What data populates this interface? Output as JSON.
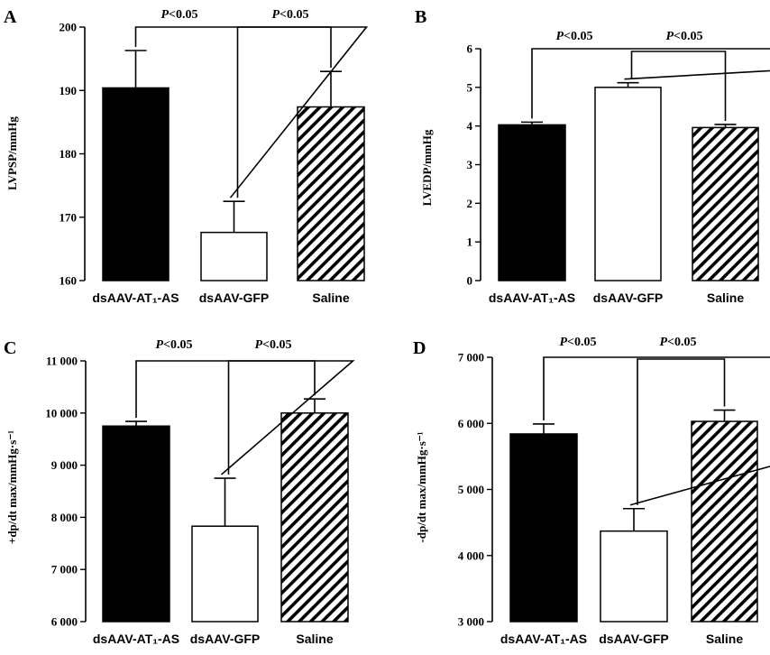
{
  "colors": {
    "ink": "#000000",
    "background": "#ffffff"
  },
  "chart_data": [
    {
      "panel": "A",
      "type": "bar",
      "ylabel": "LVPSP/mmHg",
      "categories": [
        "dsAAV-AT₁-AS",
        "dsAAV-GFP",
        "Saline"
      ],
      "values": [
        190.4,
        167.6,
        187.4
      ],
      "errors": [
        5.9,
        4.9,
        5.6
      ],
      "fills": [
        "solid",
        "empty",
        "hatch"
      ],
      "ylim": [
        160,
        200
      ],
      "yticks": [
        160,
        170,
        180,
        190,
        200
      ],
      "ytick_labels": [
        "160",
        "170",
        "180",
        "190",
        "200"
      ],
      "annotations": [
        "P<0.05",
        "P<0.05"
      ]
    },
    {
      "panel": "B",
      "type": "bar",
      "ylabel": "LVEDP/mmHg",
      "categories": [
        "dsAAV-AT₁-AS",
        "dsAAV-GFP",
        "Saline"
      ],
      "values": [
        4.03,
        5.0,
        3.96
      ],
      "errors": [
        0.07,
        0.12,
        0.08
      ],
      "fills": [
        "solid",
        "empty",
        "hatch"
      ],
      "ylim": [
        0,
        6
      ],
      "yticks": [
        0,
        1,
        2,
        3,
        4,
        5,
        6
      ],
      "ytick_labels": [
        "0",
        "1",
        "2",
        "3",
        "4",
        "5",
        "6"
      ],
      "annotations": [
        "P<0.05",
        "P<0.05"
      ]
    },
    {
      "panel": "C",
      "type": "bar",
      "ylabel": "+dp/dt max/mmHg·s⁻¹",
      "categories": [
        "dsAAV-AT₁-AS",
        "dsAAV-GFP",
        "Saline"
      ],
      "values": [
        9750,
        7830,
        10000
      ],
      "errors": [
        90,
        920,
        270
      ],
      "fills": [
        "solid",
        "empty",
        "hatch"
      ],
      "ylim": [
        6000,
        11000
      ],
      "yticks": [
        6000,
        7000,
        8000,
        9000,
        10000,
        11000
      ],
      "ytick_labels": [
        "6 000",
        "7 000",
        "8 000",
        "9 000",
        "10 000",
        "11 000"
      ],
      "annotations": [
        "P<0.05",
        "P<0.05"
      ]
    },
    {
      "panel": "D",
      "type": "bar",
      "ylabel": "-dp/dt max/mmHg·s⁻¹",
      "categories": [
        "dsAAV-AT₁-AS",
        "dsAAV-GFP",
        "Saline"
      ],
      "values": [
        5840,
        4370,
        6030
      ],
      "errors": [
        150,
        340,
        170
      ],
      "fills": [
        "solid",
        "empty",
        "hatch"
      ],
      "ylim": [
        3000,
        7000
      ],
      "yticks": [
        3000,
        4000,
        5000,
        6000,
        7000
      ],
      "ytick_labels": [
        "3 000",
        "4 000",
        "5 000",
        "6 000",
        "7 000"
      ],
      "annotations": [
        "P<0.05",
        "P<0.05"
      ]
    }
  ]
}
